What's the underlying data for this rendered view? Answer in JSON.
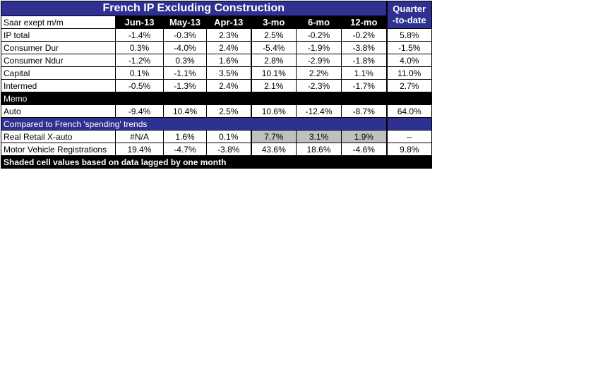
{
  "title": "French IP Excluding Construction",
  "qtd_header_line1": "Quarter",
  "qtd_header_line2": "-to-date",
  "units_label": "Saar exept m/m",
  "columns": [
    "Jun-13",
    "May-13",
    "Apr-13",
    "3-mo",
    "6-mo",
    "12-mo"
  ],
  "ip_rows": [
    {
      "label": "IP total",
      "values": [
        "-1.4%",
        "-0.3%",
        "2.3%",
        "2.5%",
        "-0.2%",
        "-0.2%"
      ],
      "qtd": "5.8%"
    },
    {
      "label": " Consumer Dur",
      "values": [
        "0.3%",
        "-4.0%",
        "2.4%",
        "-5.4%",
        "-1.9%",
        "-3.8%"
      ],
      "qtd": "-1.5%"
    },
    {
      "label": " Consumer Ndur",
      "values": [
        "-1.2%",
        "0.3%",
        "1.6%",
        "2.8%",
        "-2.9%",
        "-1.8%"
      ],
      "qtd": "4.0%"
    },
    {
      "label": " Capital",
      "values": [
        "0.1%",
        "-1.1%",
        "3.5%",
        "10.1%",
        "2.2%",
        "1.1%"
      ],
      "qtd": "11.0%"
    },
    {
      "label": " Intermed",
      "values": [
        "-0.5%",
        "-1.3%",
        "2.4%",
        "2.1%",
        "-2.3%",
        "-1.7%"
      ],
      "qtd": "2.7%"
    }
  ],
  "memo_label": "Memo",
  "memo_rows": [
    {
      "label": " Auto",
      "values": [
        "-9.4%",
        "10.4%",
        "2.5%",
        "10.6%",
        "-12.4%",
        "-8.7%"
      ],
      "qtd": "64.0%"
    }
  ],
  "compare_label": "Compared to French 'spending' trends",
  "compare_rows": [
    {
      "label": "Real Retail X-auto",
      "values": [
        "#N/A",
        "1.6%",
        "0.1%",
        "7.7%",
        "3.1%",
        "1.9%"
      ],
      "qtd": "--",
      "shaded": [
        false,
        false,
        false,
        true,
        true,
        true
      ]
    },
    {
      "label": "Motor Vehicle Registrations",
      "values": [
        "19.4%",
        "-4.7%",
        "-3.8%",
        "43.6%",
        "18.6%",
        "-4.6%"
      ],
      "qtd": "9.8%",
      "shaded": [
        false,
        false,
        false,
        false,
        false,
        false
      ]
    }
  ],
  "footer": "Shaded cell values based on data lagged by one month",
  "colors": {
    "header_blue": "#2e3191",
    "black": "#000000",
    "shade_grey": "#c0c0c0"
  }
}
